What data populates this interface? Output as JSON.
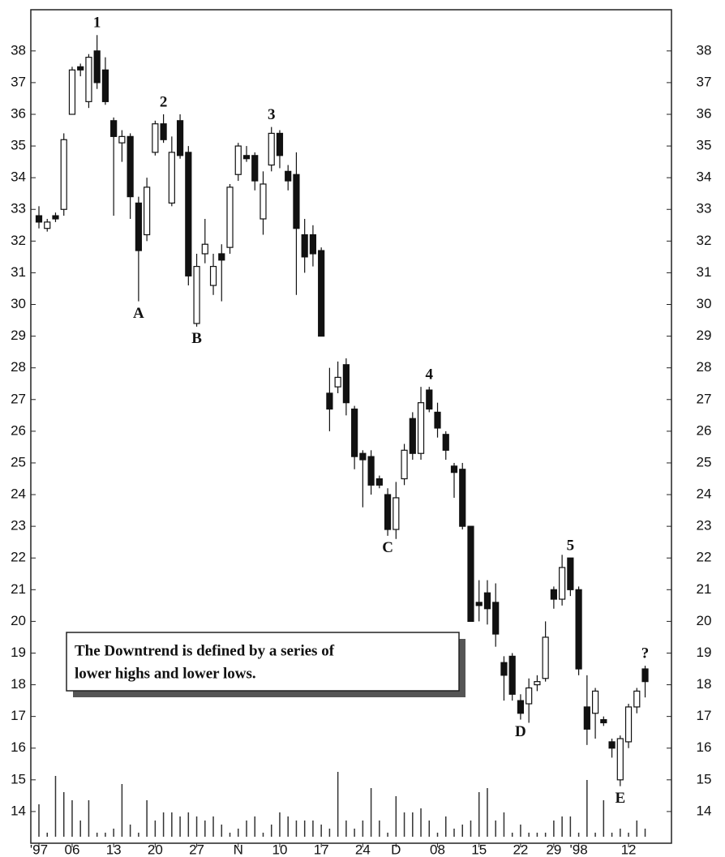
{
  "chart_data": {
    "type": "candlestick",
    "note": [
      "The Downtrend is defined by a series of",
      "lower highs and lower lows."
    ],
    "categories": [
      "'97",
      null,
      null,
      null,
      "06",
      null,
      null,
      null,
      null,
      "13",
      null,
      null,
      null,
      null,
      "20",
      null,
      null,
      null,
      null,
      "27",
      null,
      null,
      null,
      null,
      "N",
      null,
      null,
      null,
      null,
      "10",
      null,
      null,
      null,
      null,
      "17",
      null,
      null,
      null,
      null,
      "24",
      null,
      null,
      null,
      "D",
      null,
      null,
      null,
      null,
      "08",
      null,
      null,
      null,
      null,
      "15",
      null,
      null,
      null,
      null,
      "22",
      null,
      null,
      null,
      "29",
      null,
      null,
      "'98",
      null,
      null,
      null,
      null,
      null,
      "12",
      null,
      null
    ],
    "open": [
      32.8,
      32.4,
      32.8,
      33,
      36,
      37.5,
      36.4,
      38,
      37.4,
      35.8,
      35.1,
      35.3,
      33.2,
      32.2,
      34.8,
      35.7,
      33.2,
      35.8,
      34.8,
      29.4,
      31.6,
      30.6,
      31.6,
      31.8,
      34.1,
      34.7,
      34.7,
      32.7,
      34.4,
      35.4,
      34.2,
      34.1,
      32.2,
      32.2,
      31.7,
      27.2,
      27.4,
      28.1,
      26.7,
      25.3,
      25.2,
      24.5,
      24,
      22.9,
      24.5,
      26.4,
      25.3,
      27.3,
      26.6,
      25.9,
      24.9,
      24.8,
      23,
      20.6,
      20.9,
      20.6,
      18.7,
      18.9,
      17.5,
      17.4,
      18,
      18.2,
      21,
      20.7,
      22,
      21,
      17.3,
      17.1,
      16.9,
      16.2,
      15,
      16.2,
      17.3,
      18.5
    ],
    "high": [
      33.1,
      32.7,
      32.9,
      35.4,
      37.5,
      37.6,
      37.9,
      38.5,
      37.8,
      35.9,
      35.5,
      35.4,
      33.4,
      34,
      35.8,
      36,
      35.3,
      36,
      35,
      31.6,
      32.7,
      31.6,
      31.9,
      33.8,
      35.1,
      35,
      34.8,
      34.2,
      35.6,
      35.5,
      34.4,
      34.8,
      32.7,
      32.5,
      31.8,
      28,
      28.2,
      28.3,
      26.8,
      25.4,
      25.4,
      24.6,
      24.2,
      24.4,
      25.6,
      26.6,
      27.4,
      27.4,
      26.9,
      26,
      25,
      25,
      23,
      21.3,
      21.3,
      21.2,
      18.9,
      19,
      17.7,
      18.2,
      18.3,
      20,
      21.1,
      22.1,
      22,
      21.1,
      18.3,
      17.9,
      17,
      16.3,
      16.4,
      17.4,
      17.9,
      18.6
    ],
    "low": [
      32.4,
      32.3,
      32.6,
      32.8,
      36,
      37.2,
      36.2,
      36.8,
      36.3,
      32.8,
      34.5,
      32.7,
      30.1,
      32,
      34.7,
      35.1,
      33.1,
      34.6,
      30.6,
      29.3,
      31.3,
      30.3,
      30.1,
      31.6,
      33.9,
      34.5,
      33.6,
      32.2,
      34.2,
      34.3,
      33.6,
      30.3,
      31,
      31.2,
      29,
      26,
      27.2,
      26.5,
      24.8,
      23.6,
      24,
      24.2,
      22.7,
      22.6,
      24.3,
      25.1,
      25.1,
      26.6,
      25.8,
      25.1,
      23.9,
      22.9,
      20,
      20,
      19.9,
      19.2,
      17.5,
      17.5,
      16.9,
      16.8,
      17.8,
      18.1,
      20.4,
      20.5,
      20.8,
      18.3,
      16.1,
      16.3,
      16.7,
      15.7,
      14.8,
      16,
      17.1,
      17.6
    ],
    "close": [
      32.6,
      32.6,
      32.7,
      35.2,
      37.4,
      37.4,
      37.8,
      37,
      36.4,
      35.3,
      35.3,
      33.4,
      31.7,
      33.7,
      35.7,
      35.2,
      34.8,
      34.7,
      30.9,
      31.2,
      31.9,
      31.2,
      31.4,
      33.7,
      35,
      34.6,
      33.9,
      33.8,
      35.4,
      34.7,
      33.9,
      32.4,
      31.5,
      31.6,
      29,
      26.7,
      27.7,
      26.9,
      25.2,
      25.1,
      24.3,
      24.3,
      22.9,
      23.9,
      25.4,
      25.3,
      26.9,
      26.7,
      26.1,
      25.4,
      24.7,
      23,
      20,
      20.5,
      20.4,
      19.6,
      18.3,
      17.7,
      17.1,
      17.9,
      18.1,
      19.5,
      20.7,
      21.7,
      21,
      18.5,
      16.6,
      17.8,
      16.8,
      16,
      16.3,
      17.3,
      17.8,
      18.1
    ],
    "volume": [
      40,
      5,
      75,
      55,
      45,
      20,
      45,
      5,
      5,
      10,
      65,
      15,
      5,
      45,
      20,
      30,
      30,
      25,
      30,
      25,
      20,
      25,
      15,
      5,
      10,
      20,
      25,
      5,
      15,
      30,
      25,
      20,
      20,
      20,
      15,
      10,
      80,
      20,
      10,
      20,
      60,
      20,
      5,
      50,
      30,
      30,
      35,
      20,
      5,
      25,
      10,
      15,
      20,
      55,
      60,
      20,
      30,
      5,
      15,
      5,
      5,
      5,
      20,
      25,
      25,
      5,
      70,
      5,
      45,
      5,
      10,
      5,
      20,
      10
    ],
    "peak_labels": [
      null,
      null,
      null,
      null,
      null,
      null,
      null,
      "1",
      null,
      null,
      null,
      null,
      null,
      null,
      null,
      "2",
      null,
      null,
      null,
      null,
      null,
      null,
      null,
      null,
      null,
      null,
      null,
      null,
      "3",
      null,
      null,
      null,
      null,
      null,
      null,
      null,
      null,
      null,
      null,
      null,
      null,
      null,
      null,
      null,
      null,
      null,
      null,
      "4",
      null,
      null,
      null,
      null,
      null,
      null,
      null,
      null,
      null,
      null,
      null,
      null,
      null,
      null,
      null,
      null,
      "5",
      null,
      null,
      null,
      null,
      null,
      null,
      null,
      null,
      "?"
    ],
    "trough_labels": [
      null,
      null,
      null,
      null,
      null,
      null,
      null,
      null,
      null,
      null,
      null,
      null,
      "A",
      null,
      null,
      null,
      null,
      null,
      null,
      "B",
      null,
      null,
      null,
      null,
      null,
      null,
      null,
      null,
      null,
      null,
      null,
      null,
      null,
      null,
      null,
      null,
      null,
      null,
      null,
      null,
      null,
      null,
      "C",
      null,
      null,
      null,
      null,
      null,
      null,
      null,
      null,
      null,
      null,
      null,
      null,
      null,
      null,
      null,
      "D",
      null,
      null,
      null,
      null,
      null,
      null,
      null,
      null,
      null,
      null,
      null,
      "E",
      null,
      null,
      null
    ],
    "up_color": "#ffffff",
    "down_color": "#111111",
    "ylim": [
      13,
      39.3
    ],
    "yticks": [
      14,
      15,
      16,
      17,
      18,
      19,
      20,
      21,
      22,
      23,
      24,
      25,
      26,
      27,
      28,
      29,
      30,
      31,
      32,
      33,
      34,
      35,
      36,
      37,
      38
    ]
  }
}
